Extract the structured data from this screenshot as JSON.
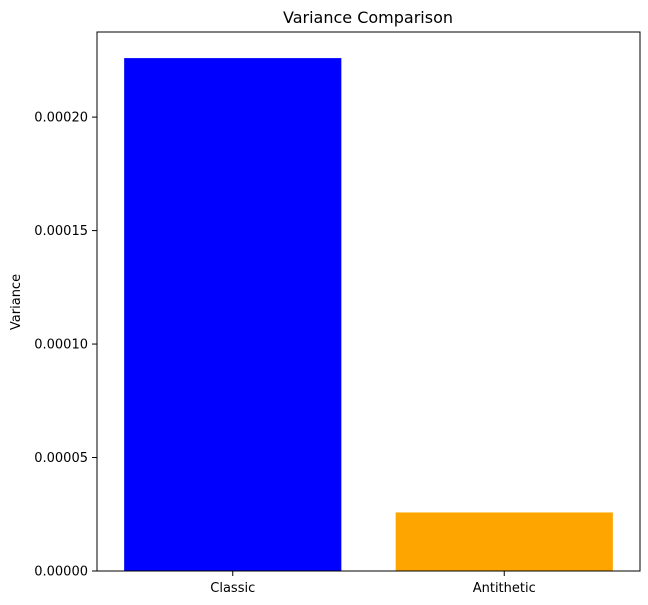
{
  "chart_data": {
    "type": "bar",
    "title": "Variance Comparison",
    "xlabel": "",
    "ylabel": "Variance",
    "categories": [
      "Classic",
      "Antithetic"
    ],
    "values": [
      0.000226,
      2.58e-05
    ],
    "colors": [
      "#0000ff",
      "#ffa500"
    ],
    "ylim": [
      0,
      0.0002375
    ],
    "yticks": [
      0,
      5e-05,
      0.0001,
      0.00015,
      0.0002
    ],
    "ytick_labels": [
      "0.00000",
      "0.00005",
      "0.00010",
      "0.00015",
      "0.00020"
    ],
    "grid": false,
    "legend": "none"
  }
}
